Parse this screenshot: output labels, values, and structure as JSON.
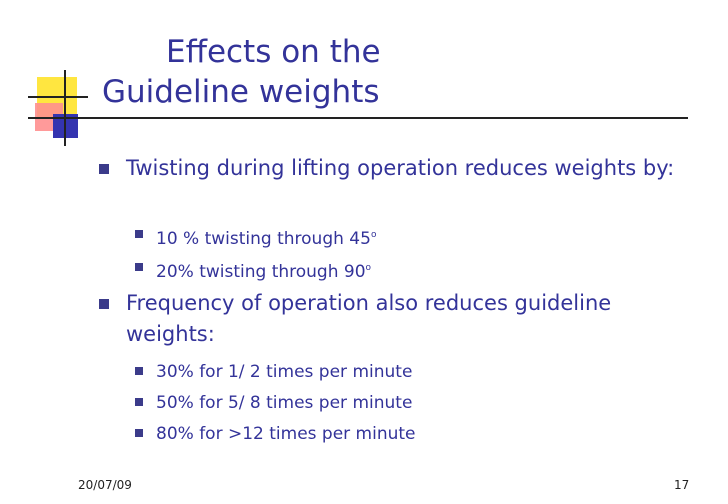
{
  "slide": {
    "title_line1": "Effects on the",
    "title_line2": "Guideline weights",
    "bullets": [
      {
        "text": "Twisting during lifting operation reduces weights by:"
      },
      {
        "text": "10 % twisting through 45",
        "sup": "o"
      },
      {
        "text": "20% twisting through 90",
        "sup": "o"
      },
      {
        "text": "Frequency of operation also reduces guideline weights:"
      },
      {
        "text": "30% for 1/ 2 times per minute"
      },
      {
        "text": "50% for 5/ 8 times per minute"
      },
      {
        "text": "80% for >12 times per minute"
      }
    ],
    "footer_date": "20/07/09",
    "page_number": "17"
  },
  "colors": {
    "text": "#333399",
    "accent_yellow": "#ffe640",
    "accent_pink": "#ff8f8f",
    "accent_blue": "#3434b0"
  }
}
